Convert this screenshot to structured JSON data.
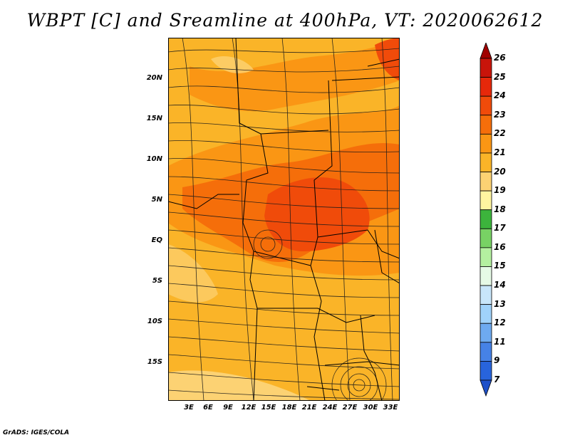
{
  "title": "WBPT [C] and Sreamline at 400hPa, VT: 2020062612",
  "footer": "GrADS: IGES/COLA",
  "lat_labels": [
    "20N",
    "15N",
    "10N",
    "5N",
    "EQ",
    "5S",
    "10S",
    "15S"
  ],
  "lon_labels": [
    "3E",
    "6E",
    "9E",
    "12E",
    "15E",
    "18E",
    "21E",
    "24E",
    "27E",
    "30E",
    "33E"
  ],
  "colorbar": {
    "levels": [
      "26",
      "25",
      "24",
      "23",
      "22",
      "21",
      "20",
      "19",
      "18",
      "17",
      "16",
      "15",
      "14",
      "13",
      "12",
      "11",
      "9",
      "7"
    ],
    "colors": [
      "#a00000",
      "#c8140a",
      "#e6280a",
      "#f04b0a",
      "#f56e0a",
      "#fa9614",
      "#fab428",
      "#fcd273",
      "#fff5a0",
      "#3cb43c",
      "#78d264",
      "#b4f0a0",
      "#e6fae6",
      "#c8e6fa",
      "#a0d2fa",
      "#6eaaf0",
      "#4682e6",
      "#2864dc",
      "#1e50c8"
    ]
  },
  "colors": {
    "bg_field": "#fab428",
    "warm": "#fa9614",
    "hot": "#f56e0a",
    "hotter": "#f04b0a",
    "cool": "#fcd273"
  }
}
